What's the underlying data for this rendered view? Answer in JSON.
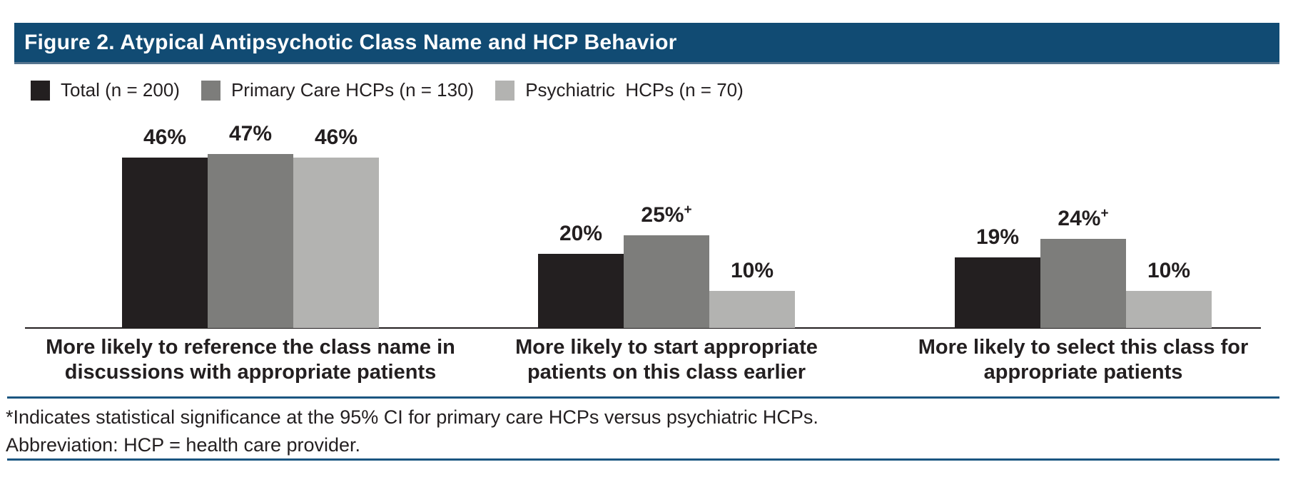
{
  "header": {
    "title": "Figure 2. Atypical Antipsychotic Class Name and HCP Behavior"
  },
  "colors": {
    "header_bar": "#114B73",
    "divider_rule": "#1B5681",
    "series_total": "#231F20",
    "series_primary_care": "#7D7D7B",
    "series_psychiatric": "#B3B3B1",
    "axis_line": "#231F20"
  },
  "legend": {
    "items": [
      {
        "label": "Total (n = 200)",
        "color": "#231F20"
      },
      {
        "label": "Primary Care HCPs (n = 130)",
        "color": "#7D7D7B"
      },
      {
        "label": "Psychiatric  HCPs (n = 70)",
        "color": "#B3B3B1"
      }
    ]
  },
  "chart_data": {
    "type": "bar",
    "title": "Figure 2. Atypical Antipsychotic Class Name and HCP Behavior",
    "xlabel": "",
    "ylabel": "",
    "ylim": [
      0,
      50
    ],
    "grid": false,
    "legend_position": "top-left",
    "categories": [
      "More likely to reference the class name in\ndiscussions with appropriate patients",
      "More likely to start appropriate\npatients on this class earlier",
      "More likely to select this class for\nappropriate patients"
    ],
    "series": [
      {
        "name": "Total (n = 200)",
        "color": "#231F20",
        "values": [
          46,
          20,
          19
        ],
        "labels": [
          "46%",
          "20%",
          "19%"
        ],
        "label_superscripts": [
          "",
          "",
          ""
        ]
      },
      {
        "name": "Primary Care HCPs (n = 130)",
        "color": "#7D7D7B",
        "values": [
          47,
          25,
          24
        ],
        "labels": [
          "47%",
          "25%",
          "24%"
        ],
        "label_superscripts": [
          "",
          "+",
          "+"
        ]
      },
      {
        "name": "Psychiatric HCPs (n = 70)",
        "color": "#B3B3B1",
        "values": [
          46,
          10,
          10
        ],
        "labels": [
          "46%",
          "10%",
          "10%"
        ],
        "label_superscripts": [
          "",
          "",
          ""
        ]
      }
    ]
  },
  "footnotes": {
    "line1": "*Indicates statistical significance at the 95% CI for primary care HCPs versus psychiatric HCPs.",
    "line2": "Abbreviation: HCP = health care provider."
  }
}
